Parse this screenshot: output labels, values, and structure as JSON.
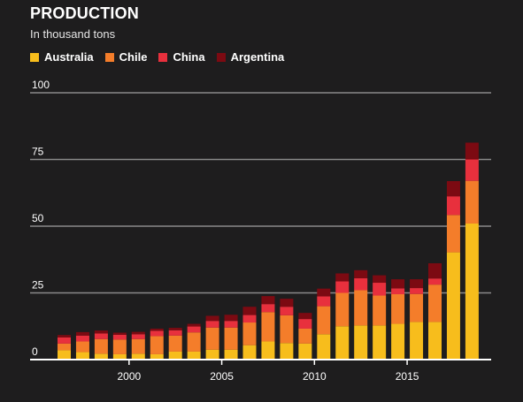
{
  "chart_data": {
    "type": "bar",
    "stacked": true,
    "title": "PRODUCTION",
    "subtitle": "In thousand tons",
    "xlabel": "",
    "ylabel": "",
    "ylim": [
      0,
      100
    ],
    "yticks": [
      0,
      25,
      50,
      75,
      100
    ],
    "xticks": [
      2000,
      2005,
      2010,
      2015
    ],
    "legend_position": "top-left",
    "grid": true,
    "categories": [
      1996,
      1997,
      1998,
      1999,
      2000,
      2001,
      2002,
      2003,
      2004,
      2005,
      2006,
      2007,
      2008,
      2009,
      2010,
      2011,
      2012,
      2013,
      2014,
      2015,
      2016,
      2017,
      2018
    ],
    "series": [
      {
        "name": "Australia",
        "color": "#f7bd1c",
        "values": [
          3.5,
          2.8,
          2.2,
          2.0,
          2.2,
          2.0,
          3.0,
          3.0,
          3.7,
          3.7,
          5.4,
          6.8,
          6.2,
          6.0,
          9.5,
          12.5,
          12.8,
          12.8,
          13.4,
          14.1,
          14.1,
          40.2,
          51.0
        ]
      },
      {
        "name": "Chile",
        "color": "#f47d2a",
        "values": [
          2.5,
          4.0,
          5.5,
          5.5,
          5.5,
          6.8,
          6.0,
          7.2,
          8.3,
          8.3,
          8.5,
          11.0,
          10.4,
          5.6,
          10.5,
          12.5,
          13.2,
          11.2,
          11.1,
          10.5,
          14.0,
          14.0,
          16.0
        ]
      },
      {
        "name": "China",
        "color": "#e8303d",
        "values": [
          2.3,
          2.2,
          2.1,
          1.8,
          1.8,
          2.0,
          2.0,
          2.2,
          2.5,
          2.5,
          2.8,
          3.0,
          3.2,
          3.6,
          3.7,
          4.3,
          4.5,
          4.8,
          2.2,
          2.2,
          2.3,
          7.0,
          8.0
        ]
      },
      {
        "name": "Argentina",
        "color": "#7c0a12",
        "values": [
          0.9,
          1.3,
          1.1,
          0.8,
          0.9,
          0.8,
          0.9,
          1.0,
          1.9,
          2.3,
          3.1,
          3.0,
          3.0,
          2.3,
          2.9,
          3.0,
          3.0,
          2.8,
          3.4,
          3.3,
          5.7,
          5.7,
          6.3
        ]
      }
    ]
  }
}
